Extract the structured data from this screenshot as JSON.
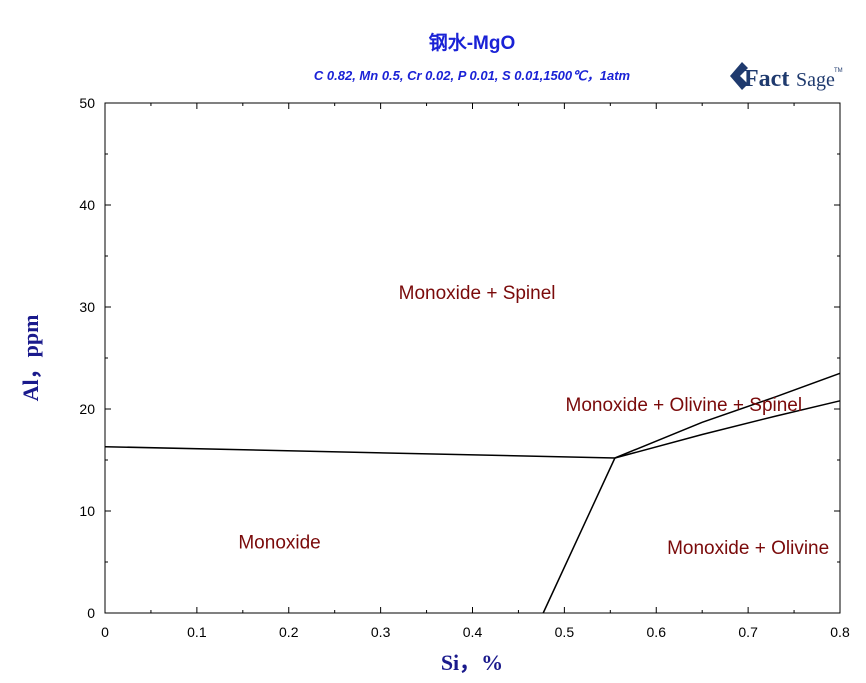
{
  "logo": {
    "icon": "factsage-logo",
    "text_main": "Fact",
    "text_sub": "Sage",
    "tm": "TM",
    "color": "#1f3a6e"
  },
  "chart_data": {
    "type": "line",
    "title": "钢水-MgO",
    "subtitle": "C 0.82, Mn 0.5, Cr 0.02, P 0.01, S 0.01,1500℃，1atm",
    "xlabel": "Si，%",
    "ylabel": "Al，ppm",
    "xlim": [
      0,
      0.8
    ],
    "ylim": [
      0,
      50
    ],
    "xticks": [
      0,
      0.1,
      0.2,
      0.3,
      0.4,
      0.5,
      0.6,
      0.7,
      0.8
    ],
    "xtick_labels": [
      "0",
      "0.1",
      "0.2",
      "0.3",
      "0.4",
      "0.5",
      "0.6",
      "0.7",
      "0.8"
    ],
    "yticks": [
      0,
      10,
      20,
      30,
      40,
      50
    ],
    "ytick_labels": [
      "0",
      "10",
      "20",
      "30",
      "40",
      "50"
    ],
    "grid": false,
    "line_color": "#000000",
    "series": [
      {
        "x": [
          0,
          0.555
        ],
        "y": [
          16.3,
          15.2
        ]
      },
      {
        "x": [
          0.477,
          0.555
        ],
        "y": [
          0,
          15.2
        ]
      },
      {
        "x": [
          0.555,
          0.65,
          0.73,
          0.8
        ],
        "y": [
          15.2,
          18.7,
          21.2,
          23.5
        ]
      },
      {
        "x": [
          0.555,
          0.65,
          0.73,
          0.8
        ],
        "y": [
          15.2,
          17.5,
          19.3,
          20.8
        ]
      }
    ],
    "annotations": [
      {
        "text": "Monoxide + Spinel",
        "x": 0.405,
        "y": 30.8
      },
      {
        "text": "Monoxide + Olivine + Spinel",
        "x": 0.63,
        "y": 19.8
      },
      {
        "text": "Monoxide",
        "x": 0.19,
        "y": 6.3
      },
      {
        "text": "Monoxide + Olivine",
        "x": 0.7,
        "y": 5.8
      }
    ]
  }
}
